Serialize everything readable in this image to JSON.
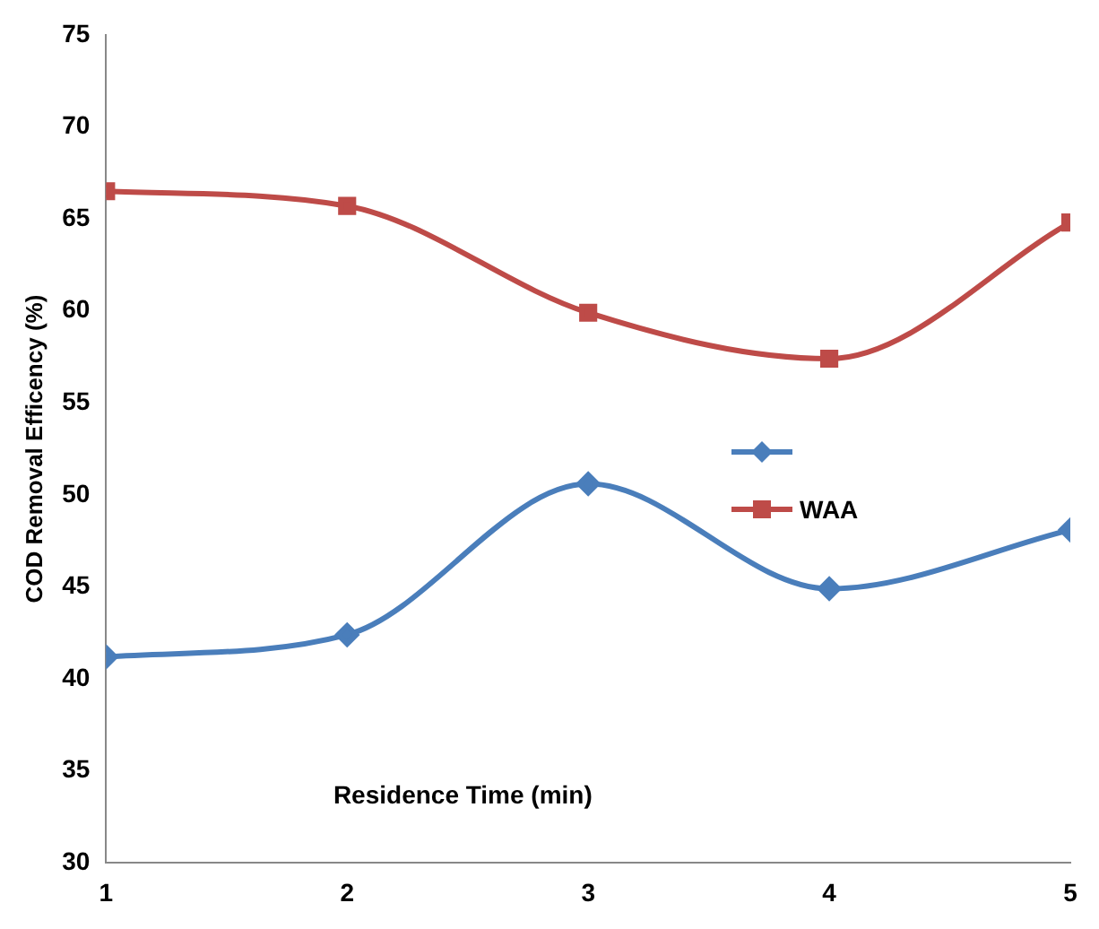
{
  "chart_data": {
    "type": "line",
    "xlabel": "Residence Time (min)",
    "ylabel": "COD Removal Efficency (%)",
    "x": [
      1,
      2,
      3,
      4,
      5
    ],
    "series": [
      {
        "color": "#4a7ebb",
        "marker": "diamond",
        "values": [
          41.2,
          42.4,
          50.6,
          44.9,
          48.1
        ]
      },
      {
        "name": "WAA",
        "color": "#be4b48",
        "marker": "square",
        "values": [
          66.5,
          65.7,
          59.9,
          57.4,
          64.8
        ]
      }
    ],
    "xlim": [
      1,
      5
    ],
    "xticks": [
      1,
      2,
      3,
      4,
      5
    ],
    "ylim": [
      30,
      75
    ],
    "yticks": [
      30,
      35,
      40,
      45,
      50,
      55,
      60,
      65,
      70,
      75
    ],
    "grid": false,
    "legend": "right"
  }
}
